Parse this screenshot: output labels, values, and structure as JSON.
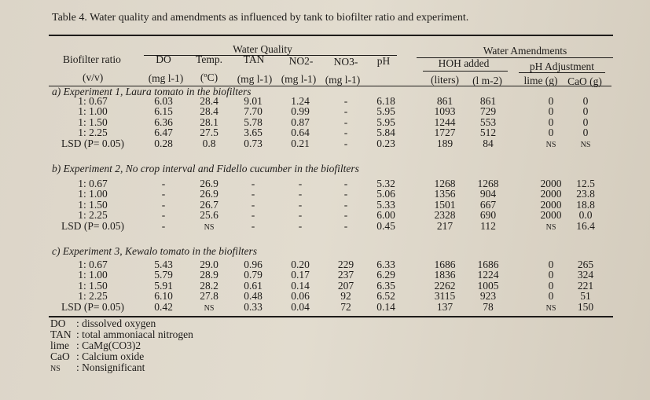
{
  "title": "Table 4. Water quality and amendments as influenced by tank to biofilter ratio and experiment.",
  "header": {
    "group_water_quality": "Water Quality",
    "group_water_amendments": "Water Amendments",
    "biofilter_ratio": "Biofilter ratio",
    "biofilter_unit": "(v/v)",
    "do": "DO",
    "do_unit": "(mg l-1)",
    "temp": "Temp.",
    "temp_unit": "(ºC)",
    "tan": "TAN",
    "tan_unit": "(mg l-1)",
    "no2": "NO2-",
    "no2_unit": "(mg l-1)",
    "no3": "NO3-",
    "no3_unit": "(mg l-1)",
    "ph": "pH",
    "hoh_added": "HOH added",
    "hoh_liters": "(liters)",
    "hoh_per_m2": "(l m-2)",
    "ph_adjustment": "pH Adjustment",
    "lime": "lime (g)",
    "cao": "CaO (g)"
  },
  "sections": [
    {
      "title": "a) Experiment 1, Laura tomato in the biofilters",
      "rows": [
        [
          "1: 0.67",
          "6.03",
          "28.4",
          "9.01",
          "1.24",
          "-",
          "6.18",
          "861",
          "861",
          "0",
          "0"
        ],
        [
          "1: 1.00",
          "6.15",
          "28.4",
          "7.70",
          "0.99",
          "-",
          "5.95",
          "1093",
          "729",
          "0",
          "0"
        ],
        [
          "1: 1.50",
          "6.36",
          "28.1",
          "5.78",
          "0.87",
          "-",
          "5.95",
          "1244",
          "553",
          "0",
          "0"
        ],
        [
          "1: 2.25",
          "6.47",
          "27.5",
          "3.65",
          "0.64",
          "-",
          "5.84",
          "1727",
          "512",
          "0",
          "0"
        ],
        [
          "LSD (P= 0.05)",
          "0.28",
          "0.8",
          "0.73",
          "0.21",
          "-",
          "0.23",
          "189",
          "84",
          "NS",
          "NS"
        ]
      ]
    },
    {
      "title": "b) Experiment 2, No crop interval and Fidello cucumber in the biofilters",
      "rows": [
        [
          "1: 0.67",
          "-",
          "26.9",
          "-",
          "-",
          "-",
          "5.32",
          "1268",
          "1268",
          "2000",
          "12.5"
        ],
        [
          "1: 1.00",
          "-",
          "26.9",
          "-",
          "-",
          "-",
          "5.06",
          "1356",
          "904",
          "2000",
          "23.8"
        ],
        [
          "1: 1.50",
          "-",
          "26.7",
          "-",
          "-",
          "-",
          "5.33",
          "1501",
          "667",
          "2000",
          "18.8"
        ],
        [
          "1: 2.25",
          "-",
          "25.6",
          "-",
          "-",
          "-",
          "6.00",
          "2328",
          "690",
          "2000",
          "0.0"
        ],
        [
          "LSD (P= 0.05)",
          "-",
          "NS",
          "-",
          "-",
          "-",
          "0.45",
          "217",
          "112",
          "NS",
          "16.4"
        ]
      ]
    },
    {
      "title": "c) Experiment 3, Kewalo tomato in the biofilters",
      "rows": [
        [
          "1: 0.67",
          "5.43",
          "29.0",
          "0.96",
          "0.20",
          "229",
          "6.33",
          "1686",
          "1686",
          "0",
          "265"
        ],
        [
          "1: 1.00",
          "5.79",
          "28.9",
          "0.79",
          "0.17",
          "237",
          "6.29",
          "1836",
          "1224",
          "0",
          "324"
        ],
        [
          "1: 1.50",
          "5.91",
          "28.2",
          "0.61",
          "0.14",
          "207",
          "6.35",
          "2262",
          "1005",
          "0",
          "221"
        ],
        [
          "1: 2.25",
          "6.10",
          "27.8",
          "0.48",
          "0.06",
          "92",
          "6.52",
          "3115",
          "923",
          "0",
          "51"
        ],
        [
          "LSD (P= 0.05)",
          "0.42",
          "NS",
          "0.33",
          "0.04",
          "72",
          "0.14",
          "137",
          "78",
          "NS",
          "150"
        ]
      ]
    }
  ],
  "footnotes": [
    {
      "abbr": "DO",
      "text": ": dissolved oxygen"
    },
    {
      "abbr": "TAN",
      "text": ": total ammoniacal nitrogen"
    },
    {
      "abbr": "lime",
      "text": ": CaMg(CO3)2"
    },
    {
      "abbr": "CaO",
      "text": ": Calcium oxide"
    },
    {
      "abbr": "NS",
      "text": ": Nonsignificant"
    }
  ]
}
